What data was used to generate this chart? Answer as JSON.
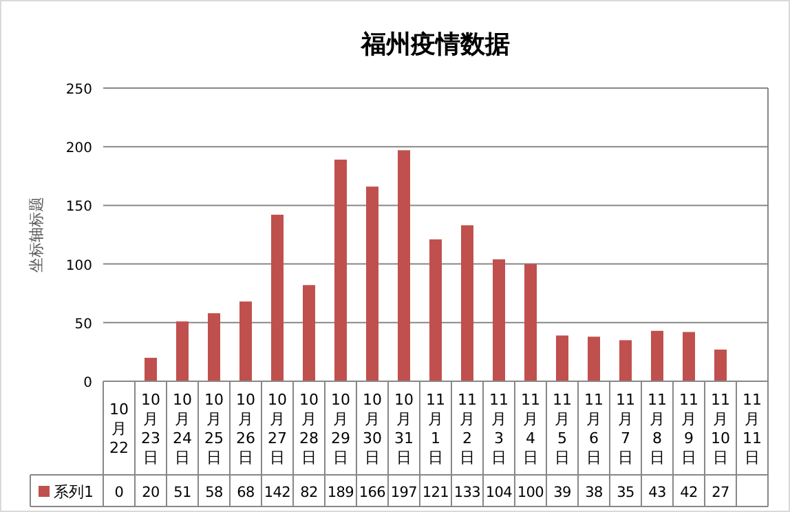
{
  "chart_data": {
    "type": "bar",
    "title": "福州疫情数据",
    "ylabel": "坐标轴标题",
    "categories": [
      "10月22",
      "10月23日",
      "10月24日",
      "10月25日",
      "10月26日",
      "10月27日",
      "10月28日",
      "10月29日",
      "10月30日",
      "10月31日",
      "11月1日",
      "11月2日",
      "11月3日",
      "11月4日",
      "11月5日",
      "11月6日",
      "11月7日",
      "11月8日",
      "11月9日",
      "11月10日",
      "11月11日"
    ],
    "series": [
      {
        "name": "系列1",
        "color": "#c0504d",
        "values": [
          0,
          20,
          51,
          58,
          68,
          142,
          82,
          189,
          166,
          197,
          121,
          133,
          104,
          100,
          39,
          38,
          35,
          43,
          42,
          27,
          null
        ]
      }
    ],
    "ylim": [
      0,
      250
    ],
    "yticks": [
      0,
      50,
      100,
      150,
      200,
      250
    ],
    "grid": "y",
    "data_labels": true
  }
}
